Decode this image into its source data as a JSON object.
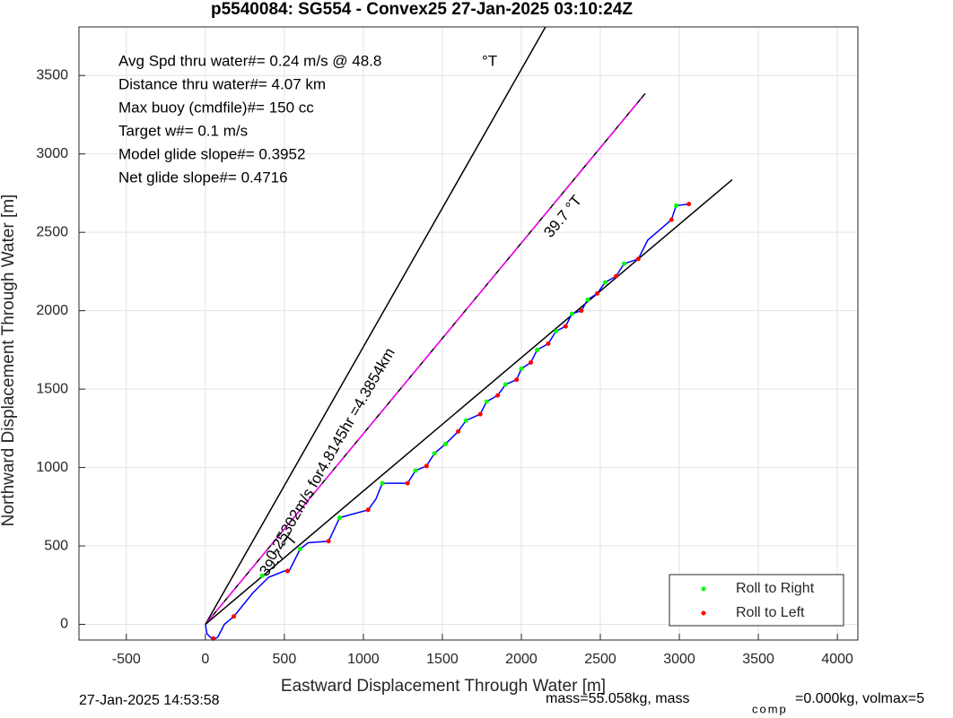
{
  "chart_data": {
    "type": "line",
    "title": "p5540084: SG554 - Convex25 27-Jan-2025 03:10:24Z",
    "x_label": "Eastward Displacement Through Water [m]",
    "y_label": "Northward Displacement Through Water [m]",
    "xlim": [
      -800,
      4130
    ],
    "ylim": [
      -100,
      3810
    ],
    "xticks": [
      -500,
      0,
      500,
      1000,
      1500,
      2000,
      2500,
      3000,
      3500,
      4000
    ],
    "yticks": [
      0,
      500,
      1000,
      1500,
      2000,
      2500,
      3000,
      3500
    ],
    "grid": true,
    "legend": "lower right",
    "annotations": [
      "Avg Spd thru water#=  0.24 m/s @  48.8",
      "°T",
      "Distance thru water#=  4.07 km",
      "Max buoy (cmdfile)#= 150 cc",
      "Target w#= 0.1 m/s",
      "Model glide slope#= 0.3952",
      "Net glide slope#= 0.4716",
      "0.25302m/s for4.8145hr =4.3854km",
      "39.7 °T",
      "39.7 °T"
    ],
    "footer": [
      "27-Jan-2025 14:53:58",
      "mass=55.058kg, mass",
      "comp",
      "=0.000kg, volmax=5"
    ],
    "series": [
      {
        "type": "line",
        "color": "#000000",
        "x": [
          0,
          2153
        ],
        "y": [
          0,
          3810
        ]
      },
      {
        "type": "line",
        "color": "#000000",
        "x": [
          0,
          2784
        ],
        "y": [
          0,
          3385
        ]
      },
      {
        "type": "line",
        "color": "#ff00ff",
        "dashed": true,
        "x": [
          0,
          2760
        ],
        "y": [
          0,
          3355
        ]
      },
      {
        "type": "line",
        "color": "#000000",
        "x": [
          0,
          3335
        ],
        "y": [
          0,
          2836
        ]
      },
      {
        "type": "line",
        "color": "#0000ff",
        "x": [
          0,
          10,
          50,
          80,
          120,
          180,
          300,
          400,
          500,
          530,
          600,
          650,
          780,
          850,
          1030,
          1080,
          1120,
          1280,
          1330,
          1400,
          1450,
          1520,
          1600,
          1650,
          1740,
          1780,
          1850,
          1900,
          1970,
          2000,
          2060,
          2100,
          2170,
          2220,
          2280,
          2320,
          2380,
          2420,
          2480,
          2530,
          2600,
          2650,
          2740,
          2800,
          2950,
          2980,
          3060
        ],
        "y": [
          0,
          -60,
          -100,
          -80,
          0,
          50,
          200,
          300,
          340,
          340,
          480,
          520,
          530,
          680,
          730,
          800,
          900,
          900,
          980,
          1010,
          1090,
          1150,
          1230,
          1300,
          1340,
          1420,
          1460,
          1530,
          1560,
          1630,
          1670,
          1750,
          1790,
          1870,
          1900,
          1980,
          2000,
          2070,
          2110,
          2180,
          2220,
          2300,
          2330,
          2450,
          2580,
          2670,
          2680
        ]
      },
      {
        "type": "scatter",
        "name": "Roll to Right",
        "color": "#00ff00",
        "x": [
          360,
          600,
          850,
          1120,
          1330,
          1450,
          1520,
          1650,
          1780,
          1900,
          2000,
          2100,
          2220,
          2320,
          2420,
          2530,
          2650,
          2980
        ],
        "y": [
          310,
          480,
          680,
          900,
          980,
          1090,
          1150,
          1300,
          1420,
          1530,
          1630,
          1750,
          1870,
          1980,
          2070,
          2180,
          2300,
          2670
        ]
      },
      {
        "type": "scatter",
        "name": "Roll to Left",
        "color": "#ff0000",
        "x": [
          50,
          180,
          520,
          780,
          1030,
          1280,
          1400,
          1600,
          1740,
          1850,
          1970,
          2060,
          2170,
          2280,
          2380,
          2480,
          2600,
          2740,
          2950,
          3060
        ],
        "y": [
          -90,
          50,
          340,
          530,
          730,
          900,
          1010,
          1230,
          1340,
          1460,
          1560,
          1670,
          1790,
          1900,
          2000,
          2110,
          2220,
          2330,
          2580,
          2680
        ]
      }
    ]
  }
}
